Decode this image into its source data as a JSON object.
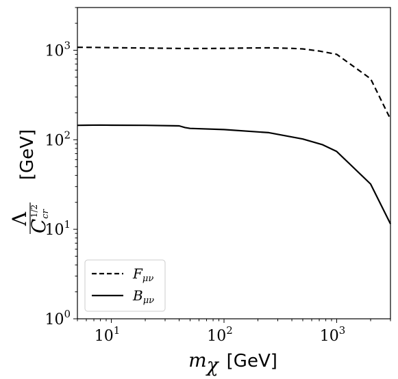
{
  "chart_data": {
    "type": "line",
    "x_scale": "log",
    "y_scale": "log",
    "xlim": [
      5,
      3000
    ],
    "ylim": [
      1,
      3000
    ],
    "x_ticks": [
      {
        "value": 10,
        "base": "10",
        "exp": "1"
      },
      {
        "value": 100,
        "base": "10",
        "exp": "2"
      },
      {
        "value": 1000,
        "base": "10",
        "exp": "3"
      }
    ],
    "y_ticks": [
      {
        "value": 1,
        "base": "10",
        "exp": "0"
      },
      {
        "value": 10,
        "base": "10",
        "exp": "1"
      },
      {
        "value": 100,
        "base": "10",
        "exp": "2"
      },
      {
        "value": 1000,
        "base": "10",
        "exp": "3"
      }
    ],
    "xlabel": {
      "symbol": "m",
      "sub": "χ",
      "unit": "[GeV]"
    },
    "ylabel": {
      "num": "Λ",
      "den": "C",
      "den_sub": "cr",
      "den_sup": "1/2",
      "unit": "[GeV]"
    },
    "legend_position": "lower-left",
    "grid": false,
    "series": [
      {
        "name": "F",
        "name_sub": "μν",
        "style": "dashed",
        "color": "#000000",
        "x": [
          5,
          7,
          10,
          20,
          40,
          70,
          100,
          150,
          250,
          400,
          500,
          700,
          1000,
          2000,
          3000
        ],
        "y": [
          1080,
          1075,
          1068,
          1058,
          1048,
          1045,
          1050,
          1058,
          1065,
          1050,
          1035,
          980,
          900,
          480,
          170
        ]
      },
      {
        "name": "B",
        "name_sub": "μν",
        "style": "solid",
        "color": "#000000",
        "x": [
          5,
          8,
          10,
          20,
          40,
          45,
          50,
          100,
          250,
          500,
          750,
          1000,
          2000,
          3000
        ],
        "y": [
          145,
          146,
          145.5,
          145,
          143,
          137,
          134,
          130,
          120,
          102,
          88,
          74,
          32,
          11.5
        ]
      }
    ]
  }
}
